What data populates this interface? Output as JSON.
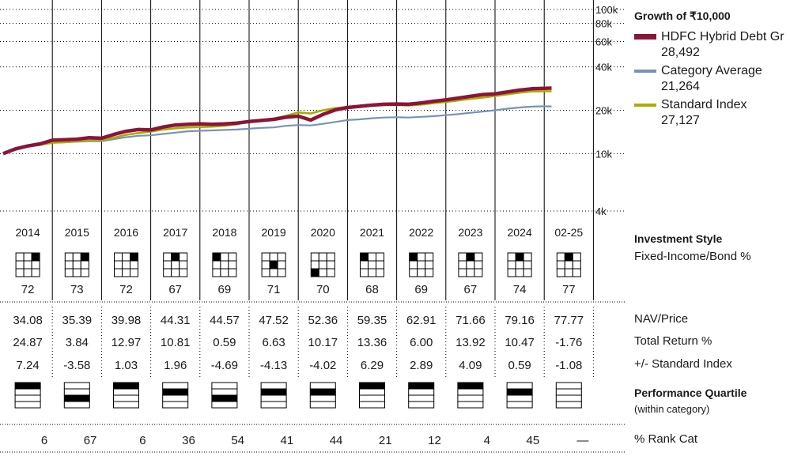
{
  "chart_data": {
    "type": "line",
    "title": "Growth of ₹10,000",
    "y_scale": "log",
    "ylim": [
      4000,
      100000
    ],
    "y_ticks": [
      {
        "value": 100000,
        "label": "100k"
      },
      {
        "value": 80000,
        "label": "80k"
      },
      {
        "value": 60000,
        "label": "60k"
      },
      {
        "value": 40000,
        "label": "40k"
      },
      {
        "value": 20000,
        "label": "20k"
      },
      {
        "value": 10000,
        "label": "10k"
      },
      {
        "value": 4000,
        "label": "4k"
      }
    ],
    "x": [
      2014.0,
      2014.25,
      2014.5,
      2014.75,
      2015.0,
      2015.25,
      2015.5,
      2015.75,
      2016.0,
      2016.25,
      2016.5,
      2016.75,
      2017.0,
      2017.25,
      2017.5,
      2017.75,
      2018.0,
      2018.25,
      2018.5,
      2018.75,
      2019.0,
      2019.25,
      2019.5,
      2019.75,
      2020.0,
      2020.25,
      2020.5,
      2020.75,
      2021.0,
      2021.25,
      2021.5,
      2021.75,
      2022.0,
      2022.25,
      2022.5,
      2022.75,
      2023.0,
      2023.25,
      2023.5,
      2023.75,
      2024.0,
      2024.25,
      2024.5,
      2024.75,
      2025.0,
      2025.15
    ],
    "series": [
      {
        "name": "HDFC Hybrid Debt Gr",
        "end_value": "28,492",
        "color": "#8b1538",
        "values": [
          10000,
          10800,
          11300,
          11700,
          12400,
          12500,
          12600,
          12900,
          12800,
          13600,
          14300,
          14700,
          14600,
          15300,
          15800,
          16000,
          16100,
          16000,
          16100,
          16300,
          16700,
          17000,
          17300,
          17900,
          18200,
          17100,
          18700,
          20100,
          20900,
          21300,
          21700,
          22000,
          22100,
          22000,
          22500,
          23100,
          23600,
          24300,
          25000,
          25700,
          26000,
          26800,
          27600,
          28200,
          28400,
          28492
        ]
      },
      {
        "name": "Category Average",
        "end_value": "21,264",
        "color": "#7892b8",
        "values": [
          10000,
          10600,
          11200,
          11500,
          11900,
          12000,
          12100,
          12200,
          12200,
          12600,
          13000,
          13300,
          13400,
          13700,
          14000,
          14300,
          14400,
          14500,
          14600,
          14700,
          14900,
          15100,
          15200,
          15600,
          15800,
          15700,
          16100,
          16600,
          17100,
          17300,
          17600,
          17800,
          17900,
          17800,
          18000,
          18200,
          18500,
          18800,
          19200,
          19600,
          20000,
          20500,
          20900,
          21200,
          21300,
          21264
        ]
      },
      {
        "name": "Standard Index",
        "end_value": "27,127",
        "color": "#a8ad00",
        "values": [
          10000,
          10700,
          11200,
          11500,
          11900,
          12000,
          12200,
          12400,
          12400,
          12900,
          13500,
          13900,
          14200,
          14700,
          15000,
          15200,
          15300,
          15400,
          15600,
          16000,
          16700,
          17100,
          17500,
          18300,
          19300,
          19000,
          20000,
          20700,
          21100,
          21400,
          21600,
          21700,
          21700,
          21600,
          21900,
          22400,
          22800,
          23400,
          24000,
          24500,
          25100,
          25800,
          26500,
          27000,
          27100,
          27127
        ]
      }
    ]
  },
  "years": [
    "2014",
    "2015",
    "2016",
    "2017",
    "2018",
    "2019",
    "2020",
    "2021",
    "2022",
    "2023",
    "2024",
    "02-25"
  ],
  "investment_style": {
    "label": "Investment Style",
    "sublabel": "Fixed-Income/Bond %",
    "values": [
      "72",
      "73",
      "72",
      "67",
      "69",
      "71",
      "70",
      "68",
      "69",
      "67",
      "74",
      "77"
    ],
    "style_box_cells": [
      [
        0,
        2
      ],
      [
        0,
        2
      ],
      [
        0,
        2
      ],
      [
        0,
        1
      ],
      [
        0,
        0
      ],
      [
        1,
        1
      ],
      [
        2,
        0
      ],
      [
        0,
        0
      ],
      [
        0,
        0
      ],
      [
        0,
        1
      ],
      [
        0,
        1
      ],
      [
        0,
        1
      ]
    ]
  },
  "rows": [
    {
      "label": "NAV/Price",
      "values": [
        "34.08",
        "35.39",
        "39.98",
        "44.31",
        "44.57",
        "47.52",
        "52.36",
        "59.35",
        "62.91",
        "71.66",
        "79.16",
        "77.77"
      ]
    },
    {
      "label": "Total Return %",
      "values": [
        "24.87",
        "3.84",
        "12.97",
        "10.81",
        "0.59",
        "6.63",
        "10.17",
        "13.36",
        "6.00",
        "13.92",
        "10.47",
        "-1.76"
      ]
    },
    {
      "label": "+/- Standard Index",
      "values": [
        "7.24",
        "-3.58",
        "1.03",
        "1.96",
        "-4.69",
        "-4.13",
        "-4.02",
        "6.29",
        "2.89",
        "4.09",
        "0.59",
        "-1.08"
      ]
    }
  ],
  "performance_quartile": {
    "label": "Performance Quartile",
    "sublabel": "(within category)",
    "quartiles": [
      1,
      3,
      1,
      2,
      3,
      2,
      2,
      1,
      1,
      1,
      2,
      0
    ]
  },
  "rank": {
    "label": "% Rank Cat",
    "values": [
      "6",
      "67",
      "6",
      "36",
      "54",
      "41",
      "44",
      "21",
      "12",
      "4",
      "45",
      "—"
    ]
  },
  "colors": {
    "hdfc": "#8b1538",
    "category": "#7892b8",
    "index": "#a8ad00",
    "grid": "#000000"
  }
}
